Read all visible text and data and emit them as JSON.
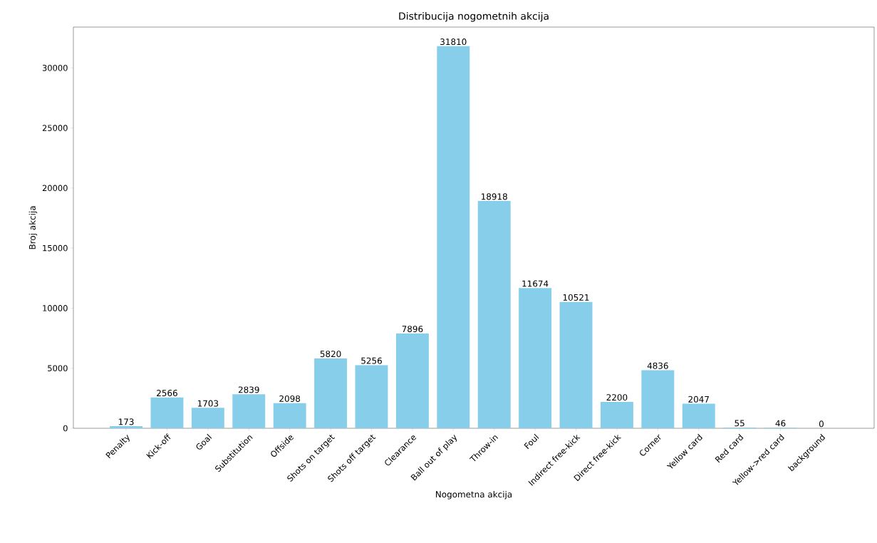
{
  "chart_data": {
    "type": "bar",
    "title": "Distribucija nogometnih akcija",
    "xlabel": "Nogometna akcija",
    "ylabel": "Broj akcija",
    "categories": [
      "Penalty",
      "Kick-off",
      "Goal",
      "Substitution",
      "Offside",
      "Shots on target",
      "Shots off target",
      "Clearance",
      "Ball out of play",
      "Throw-in",
      "Foul",
      "Indirect free-kick",
      "Direct free-kick",
      "Corner",
      "Yellow card",
      "Red card",
      "Yellow->red card",
      "background"
    ],
    "values": [
      173,
      2566,
      1703,
      2839,
      2098,
      5820,
      5256,
      7896,
      31810,
      18918,
      11674,
      10521,
      2200,
      4836,
      2047,
      55,
      46,
      0
    ],
    "color": "#87ceeb",
    "ylim": [
      0,
      33400
    ],
    "yticks": [
      0,
      5000,
      10000,
      15000,
      20000,
      25000,
      30000
    ],
    "data_labels": true
  }
}
